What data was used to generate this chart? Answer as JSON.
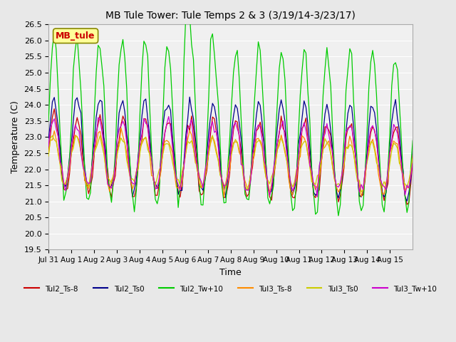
{
  "title": "MB Tule Tower: Tule Temps 2 & 3 (3/19/14-3/23/17)",
  "ylabel": "Temperature (C)",
  "xlabel": "Time",
  "ylim": [
    19.5,
    26.5
  ],
  "yticks": [
    19.5,
    20.0,
    20.5,
    21.0,
    21.5,
    22.0,
    22.5,
    23.0,
    23.5,
    24.0,
    24.5,
    25.0,
    25.5,
    26.0,
    26.5
  ],
  "x_labels": [
    "Jul 31",
    "Aug 1",
    "Aug 2",
    "Aug 3",
    "Aug 4",
    "Aug 5",
    "Aug 6",
    "Aug 7",
    "Aug 8",
    "Aug 9",
    "Aug 10",
    "Aug 11",
    "Aug 12",
    "Aug 13",
    "Aug 14",
    "Aug 15"
  ],
  "legend": [
    {
      "label": "Tul2_Ts-8",
      "color": "#cc0000"
    },
    {
      "label": "Tul2_Ts0",
      "color": "#00008b"
    },
    {
      "label": "Tul2_Tw+10",
      "color": "#00cc00"
    },
    {
      "label": "Tul3_Ts-8",
      "color": "#ff8c00"
    },
    {
      "label": "Tul3_Ts0",
      "color": "#cccc00"
    },
    {
      "label": "Tul3_Tw+10",
      "color": "#cc00cc"
    }
  ],
  "annotation_text": "MB_tule",
  "annotation_color": "#cc0000",
  "background_color": "#e8e8e8",
  "plot_bg_color": "#f0f0f0",
  "grid_color": "#ffffff",
  "n_days": 16,
  "n_per_day": 12
}
